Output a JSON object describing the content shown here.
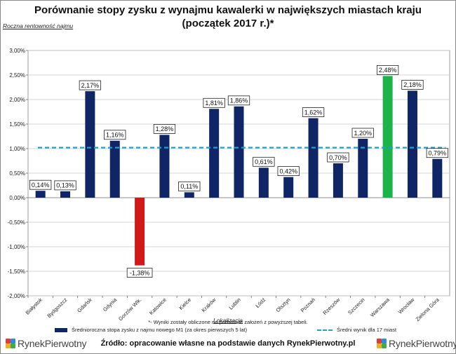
{
  "title_line1": "Porównanie stopy zysku z wynajmu kawalerki w największych miastach kraju",
  "title_line2": "(początek 2017 r.)*",
  "footnote": "*- Wyniki zostały obliczone na podstawie założeń z powyższej tabeli.",
  "source": "Źródło: opracowanie własne na podstawie danych RynekPierwotny.pl",
  "brand": {
    "part1": "Rynek",
    "part2": "Pierwotny"
  },
  "colors": {
    "bar": "#0f2566",
    "bar_negative": "#d11919",
    "bar_highlight": "#1cb34a",
    "avg_line": "#18a3d6"
  },
  "chart_data": {
    "type": "bar",
    "title": "Porównanie stopy zysku z wynajmu kawalerki w największych miastach kraju (początek 2017 r.)*",
    "ylabel": "Roczna rentowność najmu",
    "xlabel": "Lokalizacja",
    "ylim": [
      -2.0,
      3.0
    ],
    "ytick_step": 0.5,
    "ytick_labels": [
      "3,00%",
      "2,50%",
      "2,00%",
      "1,50%",
      "1,00%",
      "0,50%",
      "0,00%",
      "-0,50%",
      "-1,00%",
      "-1,50%",
      "-2,00%"
    ],
    "categories": [
      "Białystok",
      "Bydgoszcz",
      "Gdańsk",
      "Gdynia",
      "Gorzów Wlk.",
      "Katowice",
      "Kielce",
      "Kraków",
      "Lublin",
      "Łódź",
      "Olsztyn",
      "Poznań",
      "Rzeszów",
      "Szczecin",
      "Warszawa",
      "Wrocław",
      "Zielona Góra"
    ],
    "series": [
      {
        "name": "Średnioroczna stopa zysku z najmu nowego M1 (za okres pierwszych 5 lat)",
        "values": [
          0.14,
          0.13,
          2.17,
          1.16,
          -1.38,
          1.28,
          0.11,
          1.81,
          1.86,
          0.61,
          0.42,
          1.62,
          0.7,
          1.2,
          2.48,
          2.18,
          0.79
        ],
        "labels": [
          "0,14%",
          "0,13%",
          "2,17%",
          "1,16%",
          "-1,38%",
          "1,28%",
          "0,11%",
          "1,81%",
          "1,86%",
          "0,61%",
          "0,42%",
          "1,62%",
          "0,70%",
          "1,20%",
          "2,48%",
          "2,18%",
          "0,79%"
        ]
      }
    ],
    "average": {
      "name": "Średni wynik dla 17 miast",
      "value": 1.02
    },
    "grid": true,
    "legend": "bottom"
  }
}
